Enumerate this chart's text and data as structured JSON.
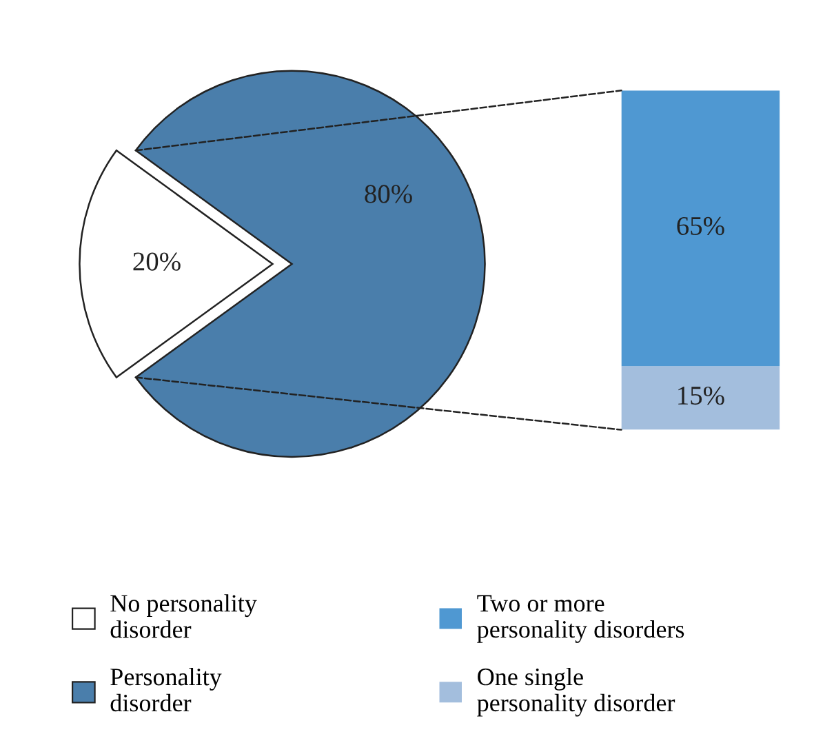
{
  "chart_data": [
    {
      "type": "pie",
      "categories": [
        "No personality disorder",
        "Personality disorder"
      ],
      "values": [
        20,
        80
      ],
      "colors": [
        "#ffffff",
        "#4a7eab"
      ],
      "value_labels": [
        "20%",
        "80%"
      ],
      "legend": "bottom"
    },
    {
      "type": "bar",
      "categories": [
        null
      ],
      "stacked": true,
      "legend": "bottom",
      "series": [
        {
          "name": "One single personality disorder",
          "color": "#a3bedd",
          "values": [
            15
          ],
          "value_labels": [
            "15%"
          ]
        },
        {
          "name": "Two or more personality disorders",
          "color": "#4f98d2",
          "values": [
            65
          ],
          "value_labels": [
            "65%"
          ]
        }
      ]
    }
  ]
}
